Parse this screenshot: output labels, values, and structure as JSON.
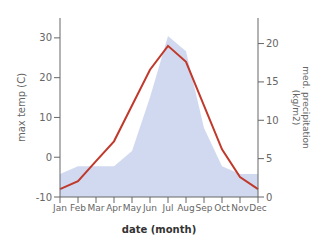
{
  "chart_data": {
    "type": "line",
    "xlabel": "date (month)",
    "ylabel": "max temp (C)",
    "y2label": "med. precipitation\n(kg/m2)",
    "categories": [
      "Jan",
      "Feb",
      "Mar",
      "Apr",
      "May",
      "Jun",
      "Jul",
      "Aug",
      "Sep",
      "Oct",
      "Nov",
      "Dec"
    ],
    "series": [
      {
        "type": "area",
        "color": "#b8c4e8",
        "axis": "y2",
        "values": [
          3,
          4,
          4,
          4,
          6,
          13,
          21,
          19,
          9,
          4,
          3,
          3
        ]
      },
      {
        "type": "line",
        "color": "#c0392b",
        "values": [
          -8,
          -6,
          -1,
          4,
          13,
          22,
          28,
          24,
          13,
          2,
          -5,
          -8
        ]
      }
    ],
    "ylim": [
      -10,
      35
    ],
    "yticks": [
      -10,
      0,
      10,
      20,
      30
    ],
    "y2lim": [
      0,
      23.33
    ],
    "y2ticks": [
      0,
      5,
      10,
      15,
      20
    ],
    "grid": false
  }
}
